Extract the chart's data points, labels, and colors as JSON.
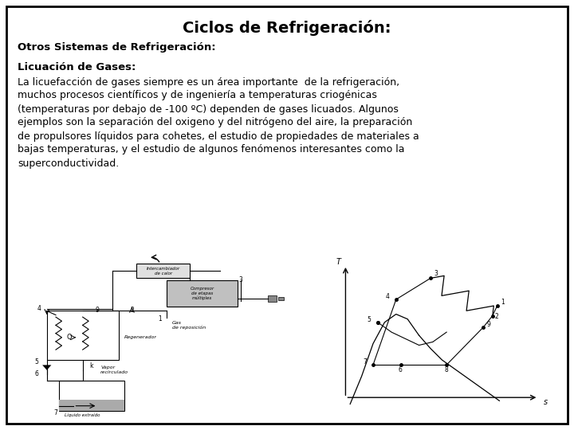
{
  "title": "Ciclos de Refrigeración:",
  "subtitle": "Otros Sistemas de Refrigeración:",
  "section_title": "Licuación de Gases:",
  "body_text": "La licuefacción de gases siempre es un área importante  de la refrigeración,\nmuchos procesos científicos y de ingeniería a temperaturas criogénicas\n(temperaturas por debajo de -100 ºC) dependen de gases licuados. Algunos\nejemplos son la separación del oxigeno y del nitrógeno del aire, la preparación\nde propulsores líquidos para cohetes, el estudio de propiedades de materiales a\nbajas temperaturas, y el estudio de algunos fenómenos interesantes como la\nsuperconductividad.",
  "bg_color": "#ffffff",
  "border_color": "#000000",
  "title_fontsize": 14,
  "subtitle_fontsize": 9.5,
  "body_fontsize": 9,
  "text_color": "#000000"
}
